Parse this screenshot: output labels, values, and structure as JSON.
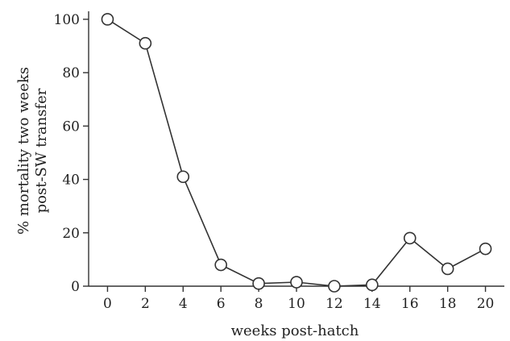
{
  "chart_data": {
    "type": "line",
    "title": "",
    "xlabel": "weeks post-hatch",
    "ylabel_lines": [
      "% mortality two weeks",
      "post-SW transfer"
    ],
    "xlim": [
      -1,
      21
    ],
    "ylim": [
      0,
      103
    ],
    "x_ticks": [
      0,
      2,
      4,
      6,
      8,
      10,
      12,
      14,
      16,
      18,
      20
    ],
    "y_ticks": [
      0,
      20,
      40,
      60,
      80,
      100
    ],
    "grid": false,
    "legend": "none",
    "marker": "open-circle",
    "series": [
      {
        "x": [
          0,
          2,
          4,
          6,
          8,
          10,
          12,
          14,
          16,
          18,
          20
        ],
        "y": [
          100,
          91,
          41,
          8,
          1,
          1.5,
          0,
          0.5,
          18,
          6.5,
          14
        ]
      }
    ]
  }
}
